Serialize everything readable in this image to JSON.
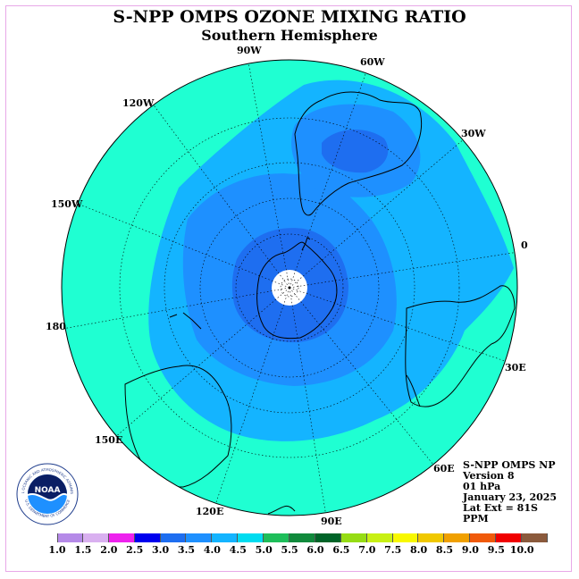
{
  "title": "S-NPP OMPS OZONE MIXING RATIO",
  "subtitle": "Southern Hemisphere",
  "longitude_labels": {
    "w90": "90W",
    "w60": "60W",
    "w30": "30W",
    "w120": "120W",
    "w150": "150W",
    "zero": "0",
    "d180": "180",
    "e30": "30E",
    "e60": "60E",
    "e90": "90E",
    "e120": "120E",
    "e150": "150E"
  },
  "info": {
    "line1": "S-NPP OMPS NP",
    "line2": "Version 8",
    "line3": "01 hPa",
    "line4": "January 23, 2025",
    "line5": "Lat Ext = 81S",
    "line6": "PPM"
  },
  "logo": {
    "text": "NOAA",
    "ring_top": "NATIONAL OCEANIC AND ATMOSPHERIC ADMINISTRATION",
    "ring_bottom": "U.S. DEPARTMENT OF COMMERCE"
  },
  "colorbar": {
    "ticks": [
      "1.0",
      "1.5",
      "2.0",
      "2.5",
      "3.0",
      "3.5",
      "4.0",
      "4.5",
      "5.0",
      "5.5",
      "6.0",
      "6.5",
      "7.0",
      "7.5",
      "8.0",
      "8.5",
      "9.0",
      "9.5",
      "10.0"
    ],
    "colors": [
      "#b58ae8",
      "#d9b0f0",
      "#ee22ee",
      "#0000ee",
      "#1e6ef0",
      "#1e90ff",
      "#14b4ff",
      "#00dcf0",
      "#1ebe5a",
      "#118a3c",
      "#006428",
      "#96dc14",
      "#c8f014",
      "#f8f800",
      "#f0c800",
      "#f0a000",
      "#f05a0a",
      "#f00000",
      "#8b5a3c"
    ]
  },
  "map_colors": {
    "c4_5_5_0": "#1fffd2",
    "c4_0_4_5": "#14b4ff",
    "c3_5_4_0": "#1e90ff",
    "c3_0_3_5": "#1e6ef0",
    "pole_no_data": "#ffffff"
  }
}
